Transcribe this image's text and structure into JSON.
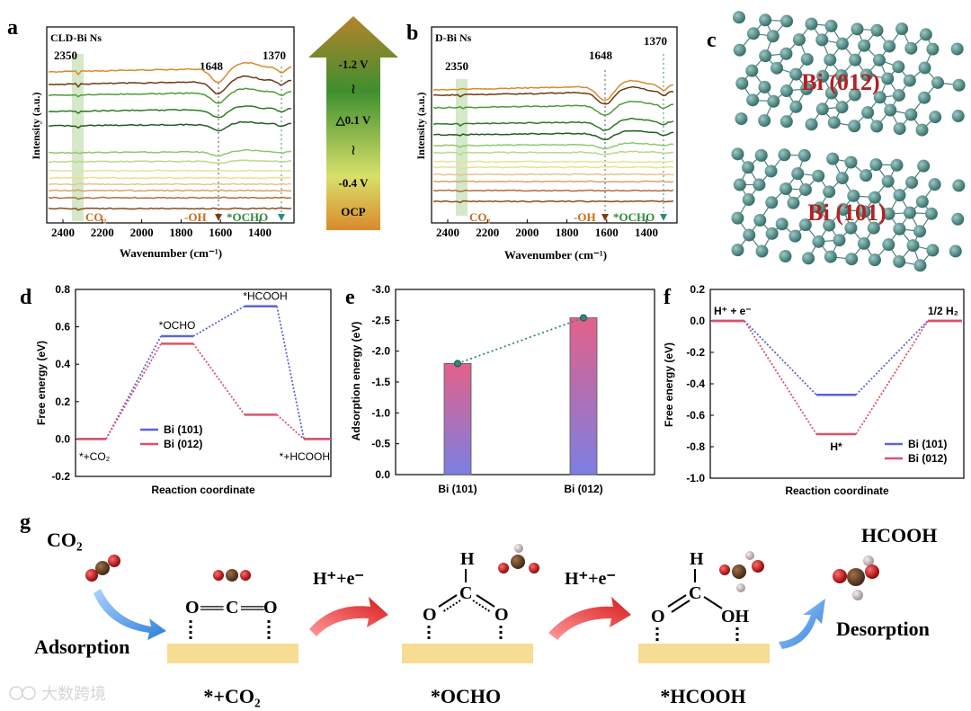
{
  "panel_labels": {
    "a": "a",
    "b": "b",
    "c": "c",
    "d": "d",
    "e": "e",
    "f": "f",
    "g": "g"
  },
  "colors": {
    "orange": "#d98a2b",
    "brown": "#7a3e12",
    "green": "#3f8f2f",
    "darkgreen": "#1f5e1f",
    "lightgreen": "#8dc96a",
    "yellow": "#e9de8c",
    "blue": "#5b63d8",
    "red": "#d9536a",
    "teal": "#2e8b7c",
    "atom": "#4f8a86",
    "label_red": "#b22222",
    "slab": "#f7dc93"
  },
  "panel_a": {
    "title": "CLD-Bi Ns",
    "xlabel": "Wavenumber (cm⁻¹)",
    "ylabel": "Intensity (a.u.)",
    "xticks": [
      "2400",
      "2200",
      "2000",
      "1800",
      "1600",
      "1400"
    ],
    "peaks": {
      "p2350": "2350",
      "p1648": "1648",
      "p1370": "1370"
    },
    "markers": {
      "co2": "CO₂",
      "oh": "-OH",
      "ocho": "*OCHO"
    }
  },
  "panel_b": {
    "title": "D-Bi Ns",
    "xlabel": "Wavenumber (cm⁻¹)",
    "ylabel": "Intensity (a.u.)",
    "xticks": [
      "2400",
      "2200",
      "2000",
      "1800",
      "1600",
      "1400"
    ],
    "peaks": {
      "p2350": "2350",
      "p1648": "1648",
      "p1370": "1370"
    },
    "markers": {
      "co2": "CO₂",
      "oh": "-OH",
      "ocho": "*OCHO"
    }
  },
  "potential_arrow": {
    "top": "-1.2 V",
    "tilde": "≀",
    "step": "△0.1 V",
    "bottom": "-0.4 V",
    "ocp": "OCP"
  },
  "panel_c": {
    "top_label": "Bi (012)",
    "bottom_label": "Bi (101)"
  },
  "chart_data": [
    {
      "type": "line",
      "panel": "d",
      "title": "",
      "xlabel": "Reaction coordinate",
      "ylabel": "Free energy (eV)",
      "ylim": [
        -0.2,
        0.8
      ],
      "yticks": [
        "-0.2",
        "0.0",
        "0.2",
        "0.4",
        "0.6",
        "0.8"
      ],
      "steps": [
        "*+CO₂",
        "*OCHO",
        "*HCOOH",
        "*+HCOOH"
      ],
      "series": [
        {
          "name": "Bi (101)",
          "values": [
            0.0,
            0.55,
            0.71,
            0.0
          ]
        },
        {
          "name": "Bi (012)",
          "values": [
            0.0,
            0.51,
            0.13,
            0.0
          ]
        }
      ],
      "legend": "bottom-left"
    },
    {
      "type": "bar",
      "panel": "e",
      "xlabel": "",
      "ylabel": "Adsorption energy (eV)",
      "ylim": [
        0,
        -3.0
      ],
      "yticks": [
        "0.0",
        "-0.5",
        "-1.0",
        "-1.5",
        "-2.0",
        "-2.5",
        "-3.0"
      ],
      "categories": [
        "Bi (101)",
        "Bi (012)"
      ],
      "values": [
        -1.8,
        -2.54
      ]
    },
    {
      "type": "line",
      "panel": "f",
      "xlabel": "Reaction coordinate",
      "ylabel": "Free energy (eV)",
      "ylim": [
        -1.0,
        0.2
      ],
      "yticks": [
        "0.2",
        "0.0",
        "-0.2",
        "-0.4",
        "-0.6",
        "-0.8",
        "-1.0"
      ],
      "steps": [
        "H⁺ + e⁻",
        "H*",
        "1/2 H₂"
      ],
      "series": [
        {
          "name": "Bi (101)",
          "values": [
            0.0,
            -0.47,
            0.0
          ]
        },
        {
          "name": "Bi (012)",
          "values": [
            0.0,
            -0.72,
            0.0
          ]
        }
      ],
      "legend": "bottom-right"
    }
  ],
  "panel_g": {
    "co2": "CO₂",
    "adsorption": "Adsorption",
    "step1": "H⁺+e⁻",
    "step2": "H⁺+e⁻",
    "hcooh": "HCOOH",
    "desorption": "Desorption",
    "state1": "*+CO₂",
    "state2": "*OCHO",
    "state3": "*HCOOH",
    "struct1": {
      "o1": "O",
      "eq1": "══",
      "c": "C",
      "eq2": "══",
      "o2": "O"
    },
    "struct2": {
      "h": "H",
      "c": "C",
      "o1": "O",
      "o2": "O"
    },
    "struct3": {
      "h": "H",
      "c": "C",
      "o1": "O",
      "oh": "OH"
    }
  },
  "watermark": "大数跨境"
}
